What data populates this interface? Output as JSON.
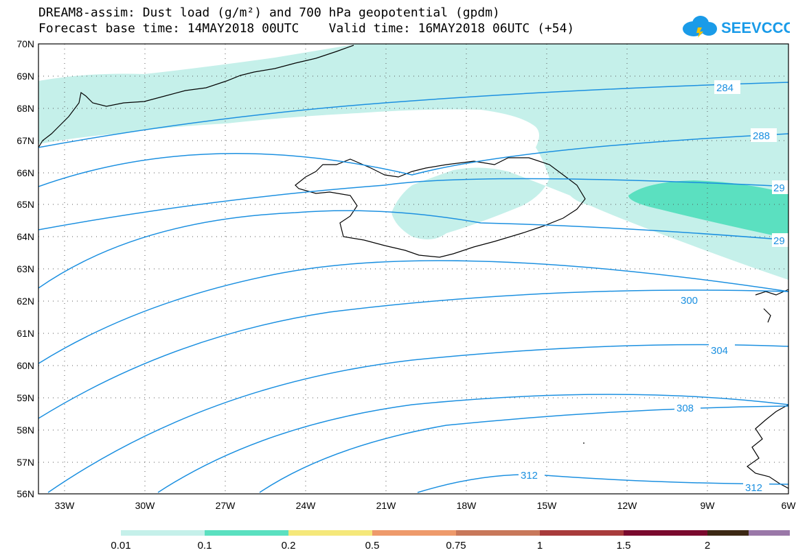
{
  "header": {
    "title_line1": "DREAM8-assim: Dust load (g/m²) and 700 hPa geopotential (gpdm)",
    "title_line2": "Forecast base time: 14MAY2018 00UTC    Valid time: 16MAY2018 06UTC (+54)"
  },
  "logo": {
    "text": "SEEVCCC",
    "icon": "cloud-icon"
  },
  "map": {
    "lat_labels": [
      "70N",
      "69N",
      "68N",
      "67N",
      "66N",
      "65N",
      "64N",
      "63N",
      "62N",
      "61N",
      "60N",
      "59N",
      "58N",
      "57N",
      "56N"
    ],
    "lon_labels": [
      "33W",
      "30W",
      "27W",
      "24W",
      "21W",
      "18W",
      "15W",
      "12W",
      "9W",
      "6W"
    ],
    "contour_labels": [
      "284",
      "288",
      "29",
      "29",
      "300",
      "304",
      "308",
      "312",
      "312"
    ]
  },
  "legend": {
    "colors": [
      "#c5f0ea",
      "#5be0c0",
      "#f5e87a",
      "#ee9a6b",
      "#c8785a",
      "#a83b3b",
      "#7a0a2e",
      "#3c2814",
      "#9a78a8"
    ],
    "labels": [
      "0.01",
      "0.1",
      "0.2",
      "0.5",
      "0.75",
      "1",
      "1.5",
      "2"
    ]
  },
  "colors": {
    "contour": "#1a8fe0",
    "dust_low": "#c5f0ea",
    "dust_mid": "#5be0c0"
  }
}
